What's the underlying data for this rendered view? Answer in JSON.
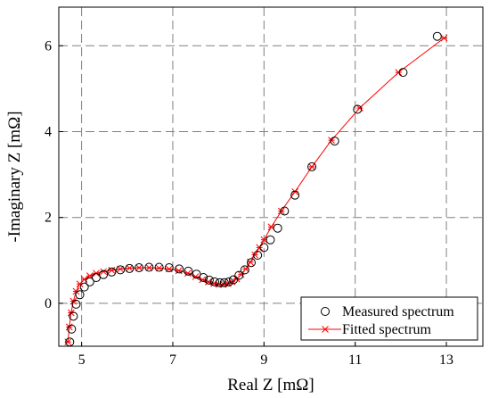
{
  "chart_data": {
    "type": "scatter",
    "xlabel": "Real Z [mΩ]",
    "ylabel": "-Imaginary Z [mΩ]",
    "xlim": [
      4.5,
      13.8
    ],
    "ylim": [
      -1.0,
      6.9
    ],
    "xticks": [
      5,
      7,
      9,
      11,
      13
    ],
    "yticks": [
      0,
      2,
      4,
      6
    ],
    "grid": true,
    "legend_position": "bottom-right",
    "colors": {
      "measured": "#000000",
      "fitted": "#ff0000",
      "grid": "#808080"
    },
    "series": [
      {
        "name": "Measured spectrum",
        "kind": "marker-circle",
        "x": [
          4.74,
          4.78,
          4.82,
          4.88,
          4.96,
          5.06,
          5.18,
          5.32,
          5.48,
          5.66,
          5.85,
          6.05,
          6.26,
          6.48,
          6.7,
          6.92,
          7.14,
          7.34,
          7.52,
          7.67,
          7.8,
          7.92,
          8.03,
          8.13,
          8.23,
          8.33,
          8.45,
          8.58,
          8.72,
          8.86,
          9.0,
          9.14,
          9.3,
          9.45,
          9.68,
          10.05,
          10.55,
          11.05,
          12.05,
          12.8
        ],
        "y": [
          -0.9,
          -0.6,
          -0.3,
          -0.02,
          0.2,
          0.38,
          0.5,
          0.6,
          0.67,
          0.73,
          0.78,
          0.81,
          0.83,
          0.84,
          0.84,
          0.83,
          0.8,
          0.75,
          0.68,
          0.6,
          0.54,
          0.5,
          0.48,
          0.48,
          0.5,
          0.55,
          0.65,
          0.78,
          0.95,
          1.12,
          1.3,
          1.48,
          1.75,
          2.15,
          2.52,
          3.18,
          3.78,
          4.52,
          5.38,
          6.22
        ]
      },
      {
        "name": "Fitted spectrum",
        "kind": "line-star",
        "x": [
          4.7,
          4.73,
          4.77,
          4.82,
          4.88,
          4.96,
          5.06,
          5.18,
          5.32,
          5.48,
          5.66,
          5.85,
          6.05,
          6.26,
          6.48,
          6.7,
          6.92,
          7.13,
          7.33,
          7.5,
          7.65,
          7.78,
          7.9,
          8.01,
          8.11,
          8.21,
          8.3,
          8.4,
          8.5,
          8.6,
          8.7,
          8.8,
          8.9,
          9.0,
          9.16,
          9.38,
          9.68,
          10.05,
          10.48,
          11.1,
          11.95,
          12.95
        ],
        "y": [
          -0.9,
          -0.55,
          -0.22,
          0.05,
          0.28,
          0.45,
          0.56,
          0.64,
          0.7,
          0.74,
          0.77,
          0.8,
          0.82,
          0.83,
          0.83,
          0.82,
          0.8,
          0.76,
          0.7,
          0.62,
          0.55,
          0.5,
          0.46,
          0.44,
          0.44,
          0.46,
          0.5,
          0.57,
          0.67,
          0.8,
          0.96,
          1.13,
          1.3,
          1.48,
          1.78,
          2.15,
          2.6,
          3.18,
          3.8,
          4.55,
          5.38,
          6.18
        ]
      }
    ]
  }
}
